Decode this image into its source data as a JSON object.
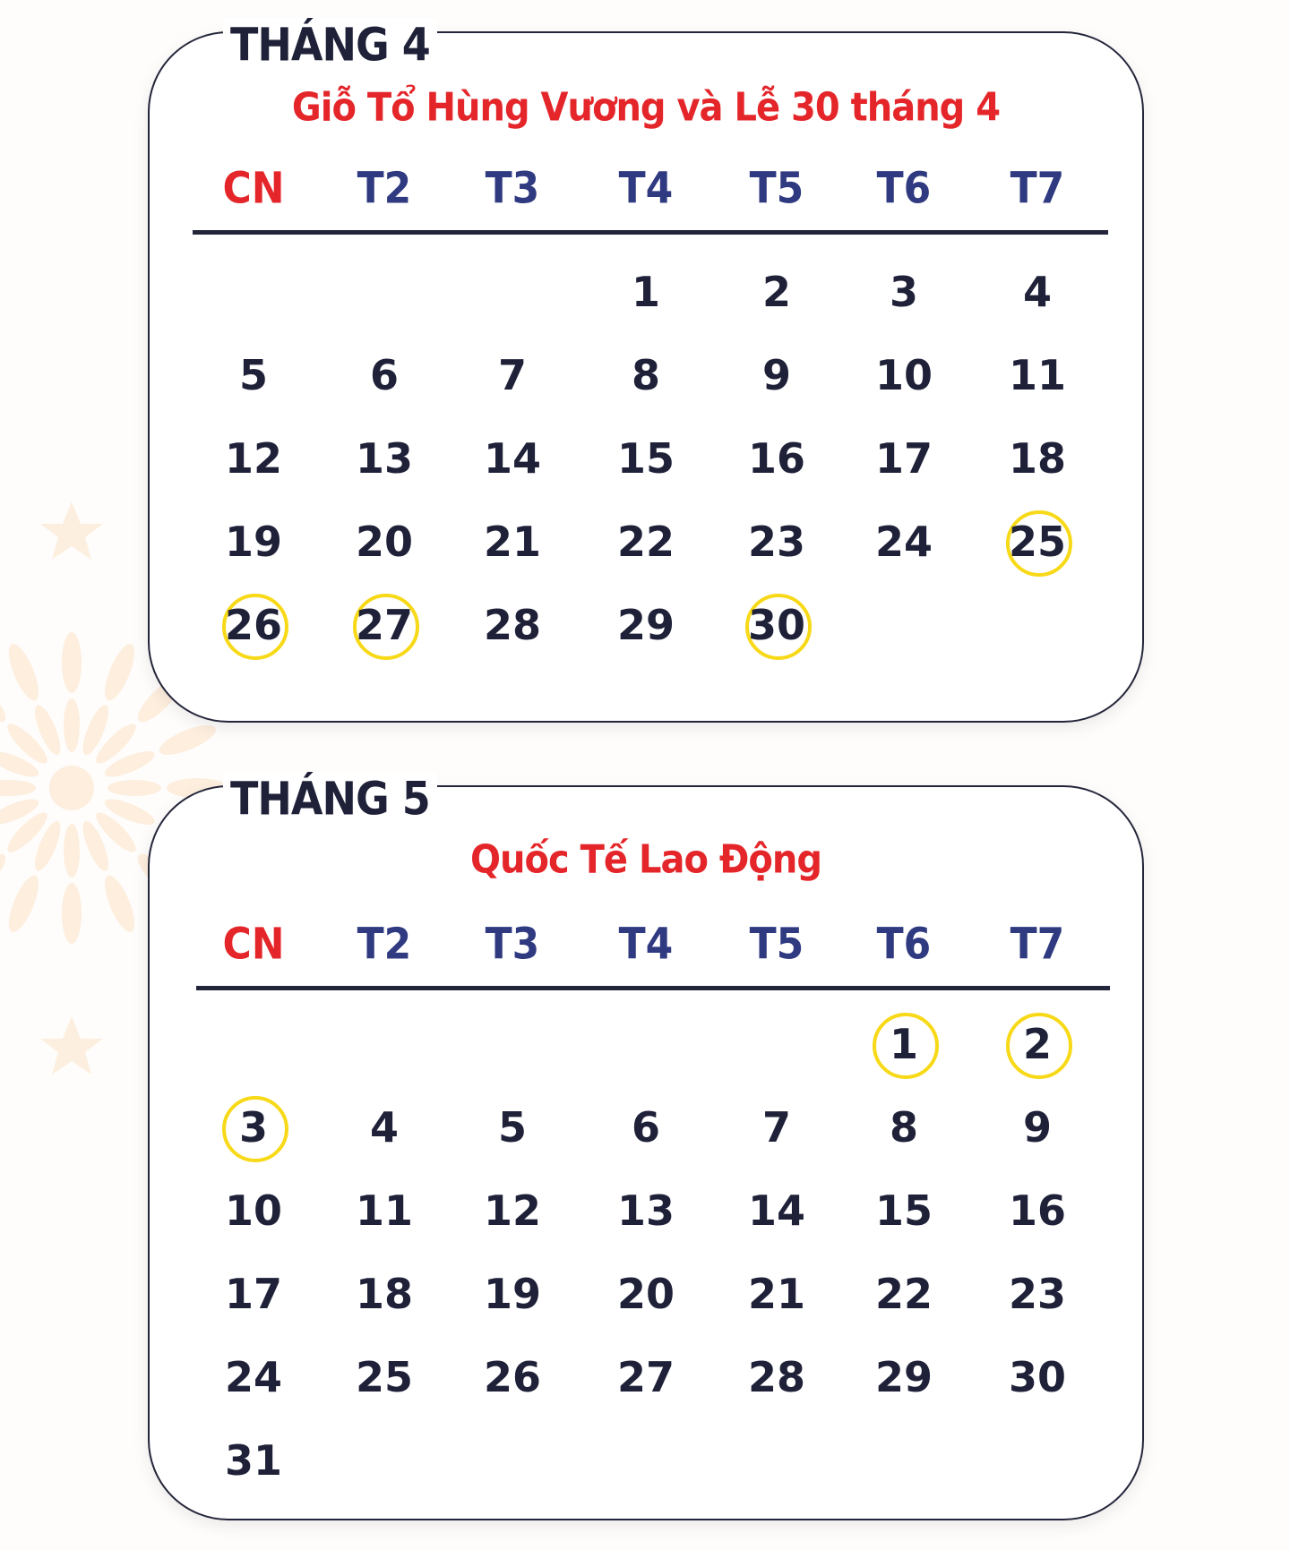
{
  "weekday_headers": [
    "CN",
    "T2",
    "T3",
    "T4",
    "T5",
    "T6",
    "T7"
  ],
  "colors": {
    "sunday": "#e4262a",
    "weekday": "#2f3a80",
    "text": "#1f2139",
    "highlight": "#f7d918",
    "subtitle": "#e4262a"
  },
  "months": [
    {
      "title": "THÁNG 4",
      "subtitle": "Giỗ Tổ Hùng Vương và Lễ 30 tháng 4",
      "weeks": [
        [
          "",
          "",
          "",
          "1",
          "2",
          "3",
          "4"
        ],
        [
          "5",
          "6",
          "7",
          "8",
          "9",
          "10",
          "11"
        ],
        [
          "12",
          "13",
          "14",
          "15",
          "16",
          "17",
          "18"
        ],
        [
          "19",
          "20",
          "21",
          "22",
          "23",
          "24",
          "25"
        ],
        [
          "26",
          "27",
          "28",
          "29",
          "30",
          "",
          ""
        ]
      ],
      "highlighted": [
        "25",
        "26",
        "27",
        "30"
      ]
    },
    {
      "title": "THÁNG 5",
      "subtitle": "Quốc Tế Lao Động",
      "weeks": [
        [
          "",
          "",
          "",
          "",
          "",
          "1",
          "2"
        ],
        [
          "3",
          "4",
          "5",
          "6",
          "7",
          "8",
          "9"
        ],
        [
          "10",
          "11",
          "12",
          "13",
          "14",
          "15",
          "16"
        ],
        [
          "17",
          "18",
          "19",
          "20",
          "21",
          "22",
          "23"
        ],
        [
          "24",
          "25",
          "26",
          "27",
          "28",
          "29",
          "30"
        ],
        [
          "31",
          "",
          "",
          "",
          "",
          "",
          ""
        ]
      ],
      "highlighted": [
        "1",
        "2",
        "3"
      ]
    }
  ]
}
